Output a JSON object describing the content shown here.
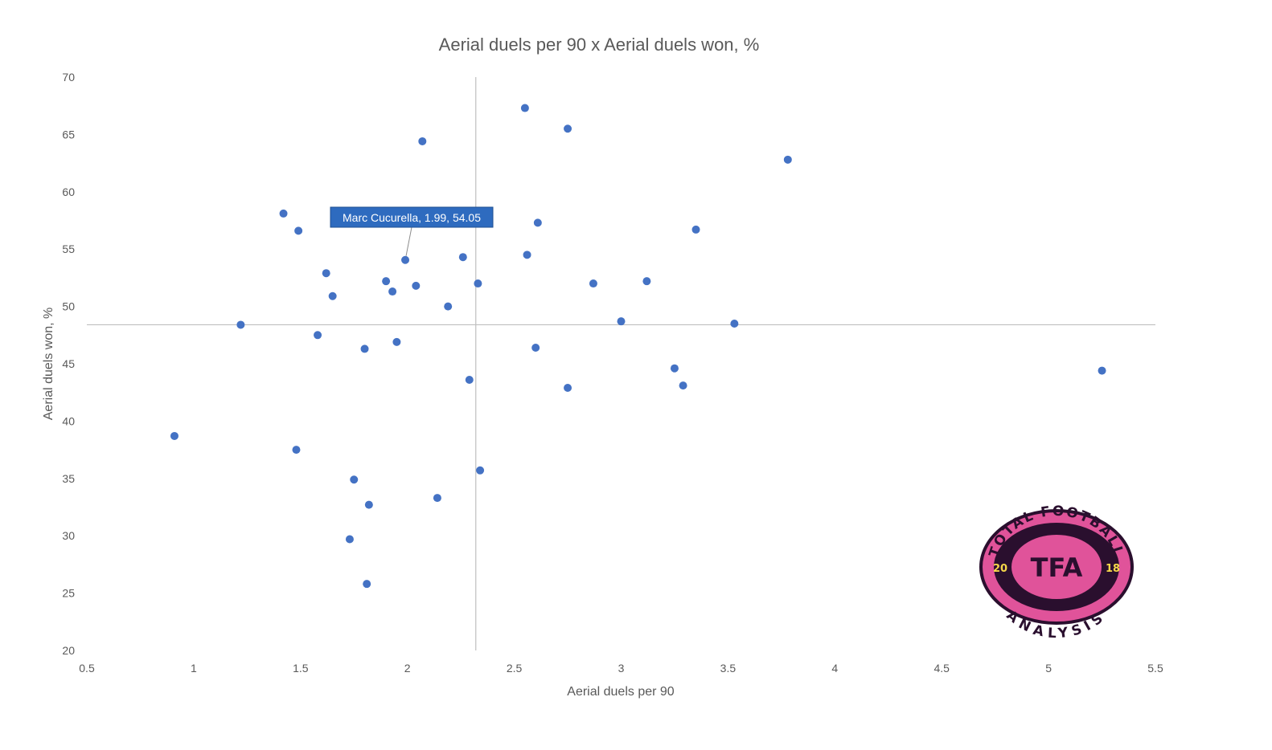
{
  "chart_data": {
    "type": "scatter",
    "title": "Aerial duels per 90 x Aerial duels won, %",
    "xlabel": "Aerial duels per 90",
    "ylabel": "Aerial duels won, %",
    "xlim": [
      0.5,
      5.5
    ],
    "ylim": [
      20,
      70
    ],
    "xticks": [
      "0.5",
      "1",
      "1.5",
      "2",
      "2.5",
      "3",
      "3.5",
      "4",
      "4.5",
      "5",
      "5.5"
    ],
    "yticks": [
      "20",
      "25",
      "30",
      "35",
      "40",
      "45",
      "50",
      "55",
      "60",
      "65",
      "70"
    ],
    "grid": false,
    "legend": "none",
    "marker_color": "#4472C4",
    "reference_lines": {
      "x": 2.32,
      "y": 48.4
    },
    "annotation": {
      "text": "Marc Cucurella, 1.99, 54.05",
      "x": 1.99,
      "y": 54.05
    },
    "points": [
      {
        "x": 0.91,
        "y": 38.7
      },
      {
        "x": 1.22,
        "y": 48.4
      },
      {
        "x": 1.42,
        "y": 58.1
      },
      {
        "x": 1.48,
        "y": 37.5
      },
      {
        "x": 1.49,
        "y": 56.6
      },
      {
        "x": 1.58,
        "y": 47.5
      },
      {
        "x": 1.62,
        "y": 52.9
      },
      {
        "x": 1.65,
        "y": 50.9
      },
      {
        "x": 1.73,
        "y": 29.7
      },
      {
        "x": 1.75,
        "y": 34.9
      },
      {
        "x": 1.8,
        "y": 46.3
      },
      {
        "x": 1.81,
        "y": 25.8
      },
      {
        "x": 1.82,
        "y": 32.7
      },
      {
        "x": 1.9,
        "y": 52.2
      },
      {
        "x": 1.93,
        "y": 51.3
      },
      {
        "x": 1.95,
        "y": 46.9
      },
      {
        "x": 1.99,
        "y": 54.05
      },
      {
        "x": 2.04,
        "y": 51.8
      },
      {
        "x": 2.07,
        "y": 64.4
      },
      {
        "x": 2.14,
        "y": 33.3
      },
      {
        "x": 2.19,
        "y": 50.0
      },
      {
        "x": 2.26,
        "y": 54.3
      },
      {
        "x": 2.29,
        "y": 43.6
      },
      {
        "x": 2.33,
        "y": 52.0
      },
      {
        "x": 2.34,
        "y": 35.7
      },
      {
        "x": 2.55,
        "y": 67.3
      },
      {
        "x": 2.56,
        "y": 54.5
      },
      {
        "x": 2.6,
        "y": 46.4
      },
      {
        "x": 2.61,
        "y": 57.3
      },
      {
        "x": 2.75,
        "y": 65.5
      },
      {
        "x": 2.75,
        "y": 42.9
      },
      {
        "x": 2.87,
        "y": 52.0
      },
      {
        "x": 3.0,
        "y": 48.7
      },
      {
        "x": 3.12,
        "y": 52.2
      },
      {
        "x": 3.25,
        "y": 44.6
      },
      {
        "x": 3.29,
        "y": 43.1
      },
      {
        "x": 3.35,
        "y": 56.7
      },
      {
        "x": 3.53,
        "y": 48.5
      },
      {
        "x": 3.78,
        "y": 62.8
      },
      {
        "x": 5.25,
        "y": 44.4
      }
    ]
  },
  "logo": {
    "top_text": "TOTAL FOOTBALL",
    "bottom_text": "ANALYSIS",
    "center_text": "TFA",
    "year_left": "20",
    "year_right": "18",
    "colors": {
      "outer": "#2a0f2e",
      "ring": "#e0539a",
      "inner": "#e0539a",
      "text": "#f7d84a"
    }
  }
}
